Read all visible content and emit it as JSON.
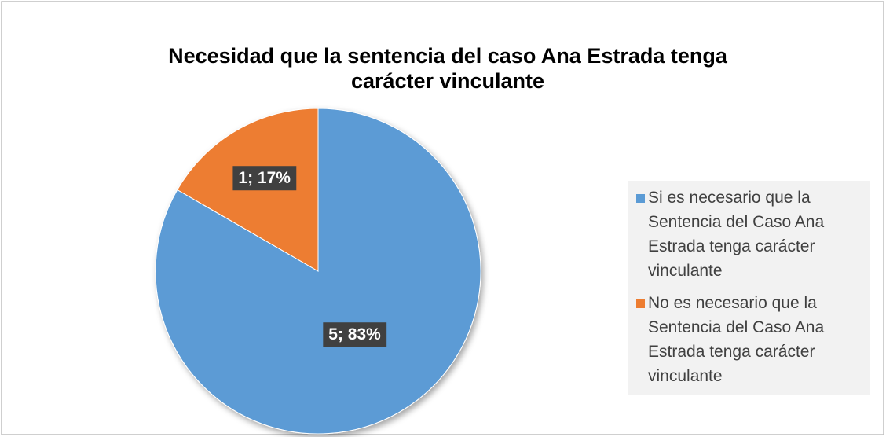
{
  "chart_data": {
    "type": "pie",
    "title": "Necesidad que la sentencia del caso Ana Estrada tenga carácter vinculante",
    "categories": [
      "Si es necesario que la Sentencia del Caso Ana Estrada tenga carácter vinculante",
      "No es necesario que la Sentencia del Caso Ana Estrada tenga carácter vinculante"
    ],
    "values": [
      5,
      1
    ],
    "value_labels": [
      "5; 83%",
      "1; 17%"
    ],
    "colors": [
      "#5b9bd5",
      "#ed7d31"
    ],
    "legend": "right"
  }
}
